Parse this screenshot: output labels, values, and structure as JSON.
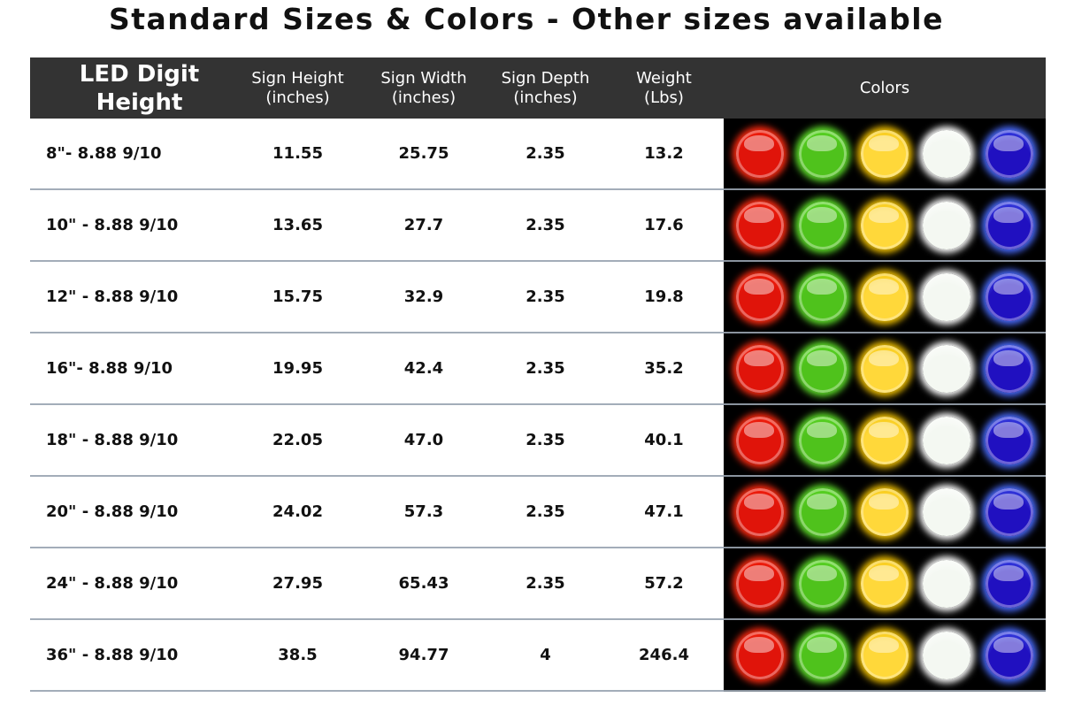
{
  "title": "Standard Sizes & Colors - Other sizes available",
  "headers": {
    "digit_height": "LED Digit Height",
    "sign_height": [
      "Sign Height",
      "(inches)"
    ],
    "sign_width": [
      "Sign Width",
      "(inches)"
    ],
    "sign_depth": [
      "Sign Depth",
      "(inches)"
    ],
    "weight": [
      "Weight",
      "(Lbs)"
    ],
    "colors": "Colors"
  },
  "colors": [
    {
      "name": "red",
      "hex": "#e0140a",
      "glow": "#ff2a10"
    },
    {
      "name": "green",
      "hex": "#4fc21c",
      "glow": "#5fe02a"
    },
    {
      "name": "yellow",
      "hex": "#ffd83a",
      "glow": "#f0c000"
    },
    {
      "name": "white",
      "hex": "#f4f8f2",
      "glow": "#ffffff"
    },
    {
      "name": "blue",
      "hex": "#2010c0",
      "glow": "#4a6cff"
    }
  ],
  "rows": [
    [
      "8\"- 8.88 9/10",
      "11.55",
      "25.75",
      "2.35",
      "13.2"
    ],
    [
      "10\" - 8.88 9/10",
      "13.65",
      "27.7",
      "2.35",
      "17.6"
    ],
    [
      "12\" - 8.88 9/10",
      "15.75",
      "32.9",
      "2.35",
      "19.8"
    ],
    [
      "16\"- 8.88 9/10",
      "19.95",
      "42.4",
      "2.35",
      "35.2"
    ],
    [
      "18\" - 8.88 9/10",
      "22.05",
      "47.0",
      "2.35",
      "40.1"
    ],
    [
      "20\" - 8.88 9/10",
      "24.02",
      "57.3",
      "2.35",
      "47.1"
    ],
    [
      "24\" - 8.88 9/10",
      "27.95",
      "65.43",
      "2.35",
      "57.2"
    ],
    [
      "36\" - 8.88 9/10",
      "38.5",
      "94.77",
      "4",
      "246.4"
    ]
  ]
}
